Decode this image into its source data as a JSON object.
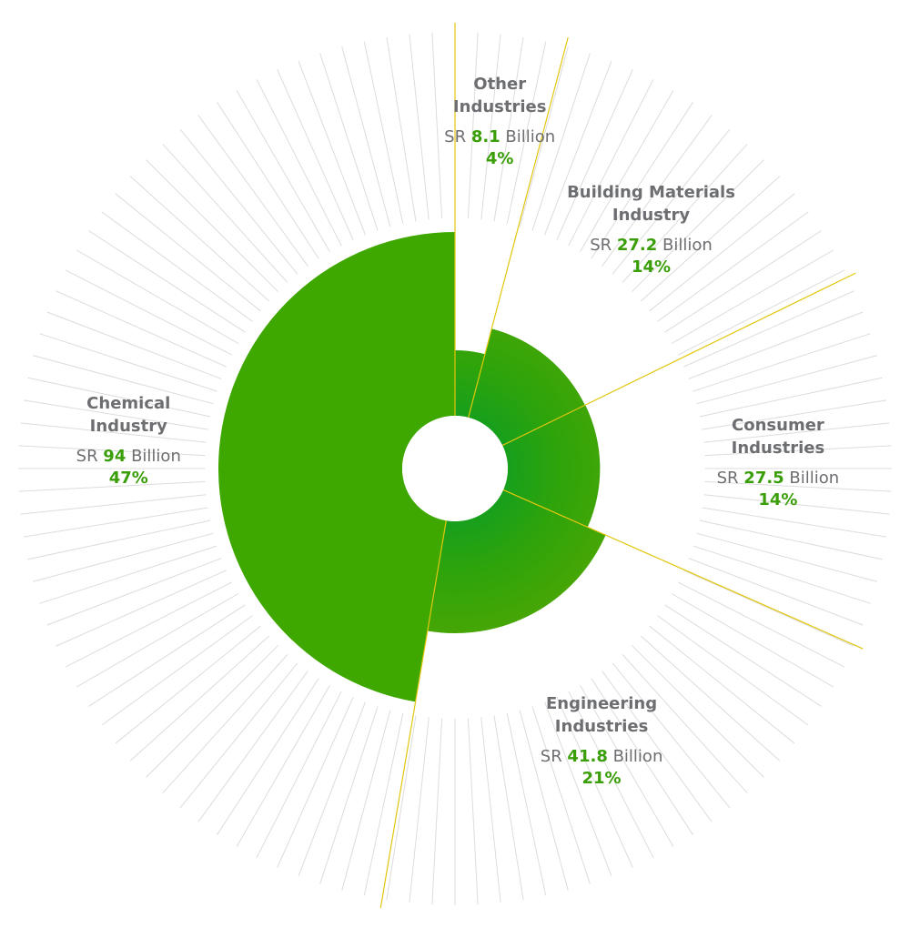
{
  "colors": {
    "slice": "#3fa800",
    "slice_alt": "#62a800",
    "slice_dark": "#009a2e",
    "divider": "#e2c60e",
    "rays": "#dcdcdc",
    "text": "#6d6e71",
    "accent": "#3a9e09"
  },
  "chart_data": {
    "type": "pie",
    "variant": "polar-area",
    "currency": "SR",
    "unit": "Billion",
    "categories": [
      "Other Industries",
      "Building Materials Industry",
      "Consumer Industries",
      "Engineering Industries",
      "Chemical Industry"
    ],
    "values": [
      8.1,
      27.2,
      27.5,
      41.8,
      94
    ],
    "percent_labels": [
      "4%",
      "14%",
      "14%",
      "21%",
      "47%"
    ],
    "labels": [
      {
        "name_lines": [
          "Other",
          "Industries"
        ],
        "prefix": "SR",
        "value": "8.1",
        "suffix": "Billion",
        "pct": "4%"
      },
      {
        "name_lines": [
          "Building Materials",
          "Industry"
        ],
        "prefix": "SR",
        "value": "27.2",
        "suffix": "Billion",
        "pct": "14%"
      },
      {
        "name_lines": [
          "Consumer",
          "Industries"
        ],
        "prefix": "SR",
        "value": "27.5",
        "suffix": "Billion",
        "pct": "14%"
      },
      {
        "name_lines": [
          "Engineering",
          "Industries"
        ],
        "prefix": "SR",
        "value": "41.8",
        "suffix": "Billion",
        "pct": "21%"
      },
      {
        "name_lines": [
          "Chemical",
          "Industry"
        ],
        "prefix": "SR",
        "value": "94",
        "suffix": "Billion",
        "pct": "47%"
      }
    ]
  }
}
